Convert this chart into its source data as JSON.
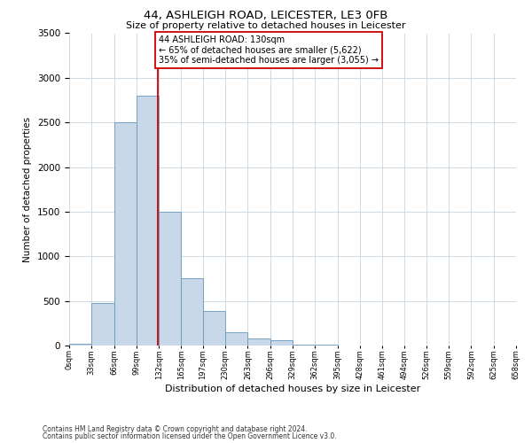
{
  "title": "44, ASHLEIGH ROAD, LEICESTER, LE3 0FB",
  "subtitle": "Size of property relative to detached houses in Leicester",
  "xlabel": "Distribution of detached houses by size in Leicester",
  "ylabel": "Number of detached properties",
  "bar_edges": [
    0,
    33,
    66,
    99,
    132,
    165,
    197,
    230,
    263,
    296,
    329,
    362,
    395,
    428,
    461,
    494,
    526,
    559,
    592,
    625,
    658
  ],
  "bar_heights": [
    20,
    480,
    2500,
    2800,
    1500,
    750,
    390,
    150,
    80,
    60,
    5,
    5,
    0,
    0,
    0,
    0,
    0,
    0,
    0,
    0
  ],
  "bar_color": "#c8d8e8",
  "bar_edge_color": "#6699bb",
  "vline_x": 130,
  "vline_color": "#cc0000",
  "ylim": [
    0,
    3500
  ],
  "yticks": [
    0,
    500,
    1000,
    1500,
    2000,
    2500,
    3000,
    3500
  ],
  "annotation_title": "44 ASHLEIGH ROAD: 130sqm",
  "annotation_line1": "← 65% of detached houses are smaller (5,622)",
  "annotation_line2": "35% of semi-detached houses are larger (3,055) →",
  "annotation_box_color": "#ffffff",
  "annotation_box_edge_color": "#cc0000",
  "footnote1": "Contains HM Land Registry data © Crown copyright and database right 2024.",
  "footnote2": "Contains public sector information licensed under the Open Government Licence v3.0.",
  "background_color": "#ffffff",
  "grid_color": "#c8d4de",
  "tick_labels": [
    "0sqm",
    "33sqm",
    "66sqm",
    "99sqm",
    "132sqm",
    "165sqm",
    "197sqm",
    "230sqm",
    "263sqm",
    "296sqm",
    "329sqm",
    "362sqm",
    "395sqm",
    "428sqm",
    "461sqm",
    "494sqm",
    "526sqm",
    "559sqm",
    "592sqm",
    "625sqm",
    "658sqm"
  ],
  "title_fontsize": 9.5,
  "subtitle_fontsize": 8.0,
  "ylabel_fontsize": 7.5,
  "xlabel_fontsize": 8.0,
  "ytick_fontsize": 7.5,
  "xtick_fontsize": 6.0,
  "annot_fontsize": 7.0,
  "footnote_fontsize": 5.5
}
